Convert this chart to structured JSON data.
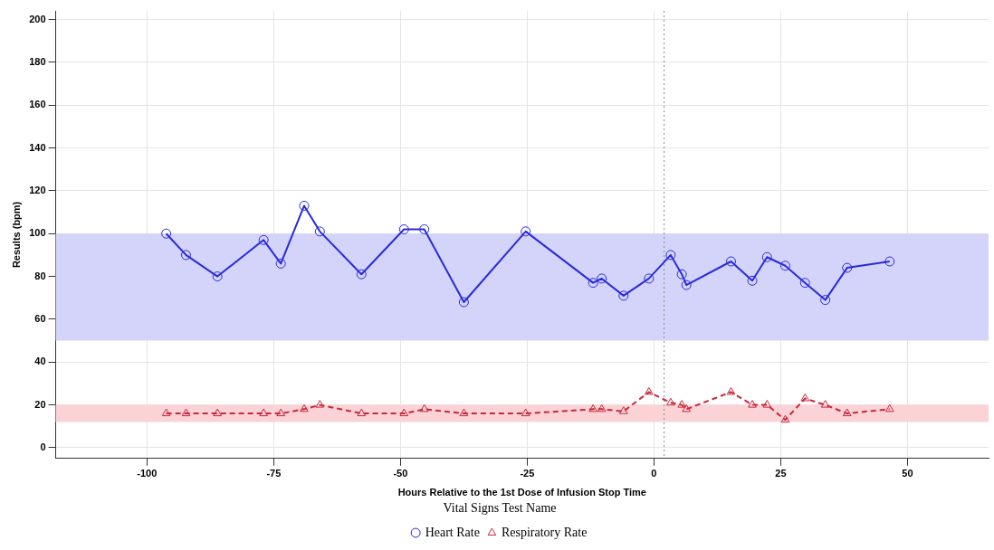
{
  "chart_data": {
    "type": "line",
    "xlabel": "Hours Relative to the 1st Dose of Infusion Stop Time",
    "ylabel": "Results (bpm)",
    "legend_title": "Vital Signs Test Name",
    "legend": "bottom",
    "grid": true,
    "x": [
      -96.2,
      -92.3,
      -86.1,
      -77,
      -73.6,
      -69,
      -65.9,
      -57.7,
      -49.3,
      -45.3,
      -37.5,
      -25.3,
      -12,
      -10.3,
      -6,
      -1,
      3.3,
      5.5,
      6.4,
      15.2,
      19.4,
      22.3,
      25.9,
      29.8,
      33.8,
      38.1,
      46.5
    ],
    "series": [
      {
        "name": "Heart Rate",
        "color": "#2a2adb",
        "marker": "circle",
        "line_style": "solid",
        "values": [
          100,
          90,
          80,
          97,
          86,
          113,
          101,
          81,
          102,
          102,
          68,
          101,
          77,
          79,
          71,
          79,
          90,
          81,
          76,
          87,
          78,
          89,
          85,
          77,
          69,
          84,
          87
        ]
      },
      {
        "name": "Respiratory Rate",
        "color": "#c8283c",
        "marker": "triangle",
        "line_style": "dashed",
        "values": [
          16,
          16,
          16,
          16,
          16,
          18,
          20,
          16,
          16,
          18,
          16,
          16,
          18,
          18,
          17,
          26,
          21,
          20,
          18,
          26,
          20,
          20,
          13,
          23,
          20,
          16,
          18
        ]
      }
    ],
    "xlim": [
      -118,
      66
    ],
    "xticks": [
      -100,
      -75,
      -50,
      -25,
      0,
      25,
      50
    ],
    "ylim": [
      -5,
      204
    ],
    "yticks": [
      0,
      20,
      40,
      60,
      80,
      100,
      120,
      140,
      160,
      180,
      200
    ],
    "bands": [
      {
        "axis": "y",
        "from": 50,
        "to": 100,
        "color": "#d4d4fa"
      },
      {
        "axis": "y",
        "from": 12,
        "to": 20,
        "color": "#fbd3d6"
      }
    ],
    "ref_lines": [
      {
        "axis": "x",
        "value": 2,
        "color": "#888888",
        "line_style": "dotted"
      }
    ]
  }
}
